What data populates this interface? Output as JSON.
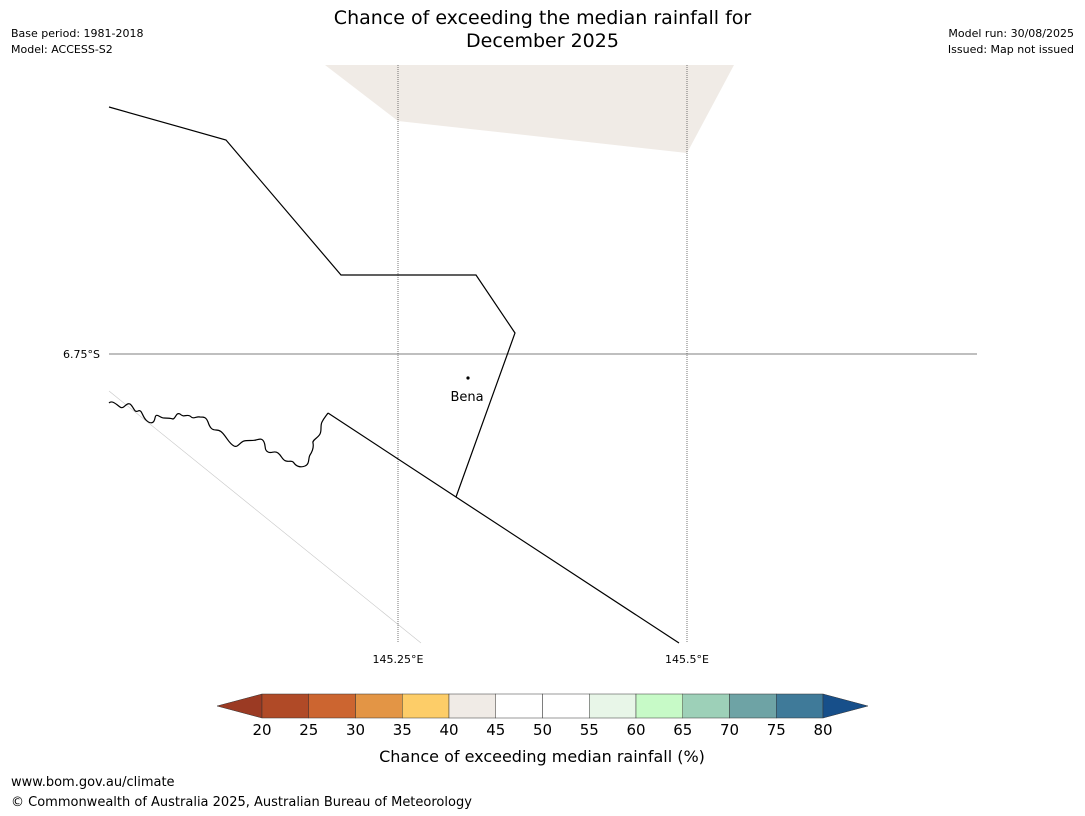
{
  "header": {
    "title_line1": "Chance of exceeding the median rainfall for",
    "title_line2": "December 2025",
    "base_period": "Base period: 1981-2018",
    "model": "Model: ACCESS-S2",
    "model_run": "Model run: 30/08/2025",
    "issued": "Issued: Map not issued"
  },
  "map": {
    "latitude_label": "6.75°S",
    "longitude_labels": [
      "145.25°E",
      "145.5°E"
    ],
    "place_name": "Bena",
    "line_color": "#000000",
    "grid_color": "#555555",
    "shaded_area_color": "#f0ebe6"
  },
  "colorbar": {
    "title": "Chance of exceeding median rainfall (%)",
    "tick_labels": [
      "20",
      "25",
      "30",
      "35",
      "40",
      "45",
      "50",
      "55",
      "60",
      "65",
      "70",
      "75",
      "80"
    ],
    "under_color": "#9b3a23",
    "over_color": "#174f8a",
    "bin_colors": [
      "#b04a27",
      "#cc6530",
      "#e39545",
      "#fdcd68",
      "#f0ebe6",
      "#ffffff",
      "#ffffff",
      "#e8f6e8",
      "#c7fac7",
      "#9dd0b8",
      "#6ea3a5",
      "#3f7a99"
    ]
  },
  "footer": {
    "url": "www.bom.gov.au/climate",
    "copyright": "© Commonwealth of Australia 2025, Australian Bureau of Meteorology"
  }
}
